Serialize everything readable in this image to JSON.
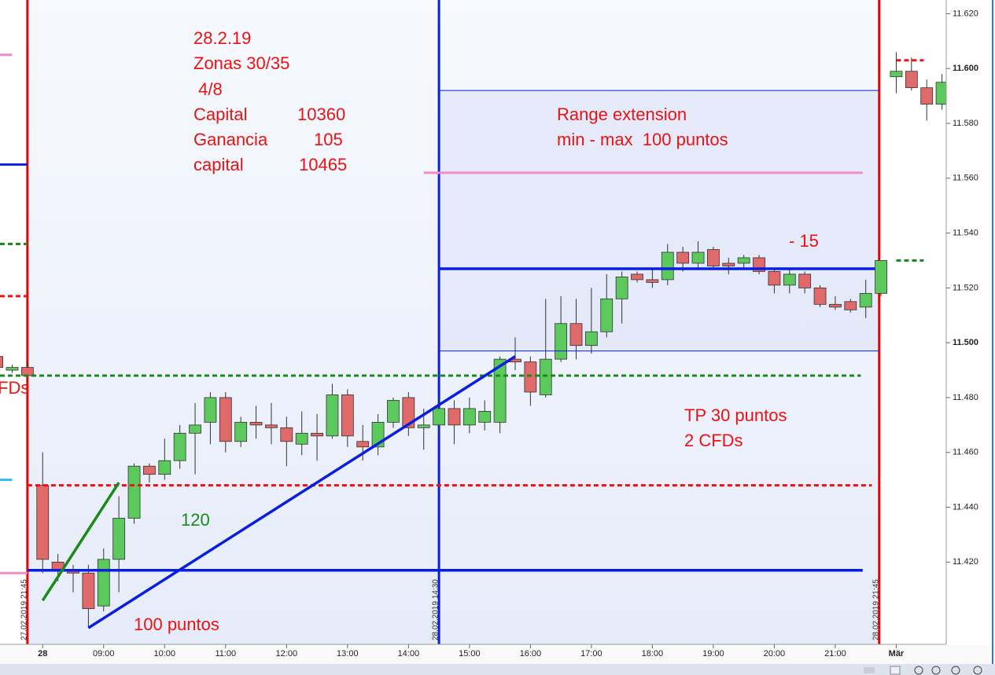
{
  "chart_data": {
    "type": "candlestick",
    "up_color": "#5cc95c",
    "down_color": "#e06a6a",
    "x": [
      7.25,
      7.5,
      7.75,
      8,
      8.25,
      8.5,
      8.75,
      9,
      9.25,
      9.5,
      9.75,
      10,
      10.25,
      10.5,
      10.75,
      11,
      11.25,
      11.5,
      11.75,
      12,
      12.25,
      12.5,
      12.75,
      13,
      13.25,
      13.5,
      13.75,
      14,
      14.25,
      14.5,
      14.75,
      15,
      15.25,
      15.5,
      15.75,
      16,
      16.25,
      16.5,
      16.75,
      17,
      17.25,
      17.5,
      17.75,
      18,
      18.25,
      18.5,
      18.75,
      19,
      19.25,
      19.5,
      19.75,
      20,
      20.25,
      20.5,
      20.75,
      21,
      21.25,
      21.5,
      21.75,
      22,
      22.25,
      22.5,
      22.75
    ],
    "open": [
      11.495,
      11.49,
      11.491,
      11.448,
      11.42,
      11.417,
      11.416,
      11.404,
      11.421,
      11.436,
      11.455,
      11.452,
      11.457,
      11.467,
      11.471,
      11.48,
      11.464,
      11.471,
      11.47,
      11.469,
      11.463,
      11.467,
      11.466,
      11.481,
      11.464,
      11.462,
      11.471,
      11.48,
      11.469,
      11.47,
      11.476,
      11.47,
      11.471,
      11.471,
      11.494,
      11.493,
      11.481,
      11.494,
      11.507,
      11.499,
      11.504,
      11.516,
      11.525,
      11.523,
      11.523,
      11.533,
      11.529,
      11.534,
      11.529,
      11.529,
      11.531,
      11.526,
      11.521,
      11.525,
      11.52,
      11.514,
      11.515,
      11.513,
      11.518,
      11.597,
      11.599,
      11.593,
      11.587
    ],
    "high": [
      11.496,
      11.492,
      11.493,
      11.46,
      11.423,
      11.419,
      11.419,
      11.425,
      11.444,
      11.456,
      11.456,
      11.465,
      11.47,
      11.478,
      11.482,
      11.482,
      11.473,
      11.477,
      11.478,
      11.473,
      11.475,
      11.474,
      11.485,
      11.483,
      11.47,
      11.474,
      11.48,
      11.482,
      11.476,
      11.48,
      11.479,
      11.48,
      11.479,
      11.495,
      11.502,
      11.495,
      11.516,
      11.517,
      11.516,
      11.52,
      11.525,
      11.526,
      11.526,
      11.527,
      11.536,
      11.535,
      11.537,
      11.535,
      11.531,
      11.532,
      11.532,
      11.527,
      11.527,
      11.526,
      11.521,
      11.517,
      11.516,
      11.523,
      11.53,
      11.606,
      11.604,
      11.596,
      11.598
    ],
    "low": [
      11.49,
      11.489,
      11.487,
      11.416,
      11.413,
      11.409,
      11.396,
      11.402,
      11.409,
      11.434,
      11.449,
      11.45,
      11.454,
      11.452,
      11.463,
      11.46,
      11.462,
      11.465,
      11.463,
      11.455,
      11.459,
      11.457,
      11.465,
      11.462,
      11.457,
      11.459,
      11.469,
      11.466,
      11.461,
      11.466,
      11.463,
      11.467,
      11.468,
      11.467,
      11.49,
      11.477,
      11.48,
      11.493,
      11.494,
      11.496,
      11.502,
      11.507,
      11.522,
      11.52,
      11.521,
      11.526,
      11.527,
      11.527,
      11.525,
      11.527,
      11.525,
      11.518,
      11.518,
      11.518,
      11.513,
      11.512,
      11.511,
      11.509,
      11.517,
      11.591,
      11.592,
      11.581,
      11.585
    ],
    "close": [
      11.491,
      11.491,
      11.488,
      11.421,
      11.417,
      11.416,
      11.403,
      11.421,
      11.436,
      11.455,
      11.452,
      11.457,
      11.467,
      11.47,
      11.48,
      11.464,
      11.471,
      11.47,
      11.469,
      11.464,
      11.467,
      11.466,
      11.481,
      11.466,
      11.462,
      11.471,
      11.479,
      11.469,
      11.47,
      11.476,
      11.47,
      11.476,
      11.475,
      11.494,
      11.493,
      11.482,
      11.494,
      11.507,
      11.499,
      11.504,
      11.516,
      11.524,
      11.523,
      11.522,
      11.533,
      11.529,
      11.533,
      11.528,
      11.528,
      11.531,
      11.526,
      11.521,
      11.525,
      11.52,
      11.514,
      11.513,
      11.512,
      11.518,
      11.53,
      11.599,
      11.593,
      11.587,
      11.595
    ],
    "xlim": [
      7.3,
      22.82
    ],
    "ylim": [
      11.39,
      11.625
    ],
    "yticks": [
      {
        "value": 11.42,
        "label": "11.420"
      },
      {
        "value": 11.44,
        "label": "11.440"
      },
      {
        "value": 11.46,
        "label": "11.460"
      },
      {
        "value": 11.48,
        "label": "11.480"
      },
      {
        "value": 11.5,
        "label": "11.500"
      },
      {
        "value": 11.52,
        "label": "11.520"
      },
      {
        "value": 11.54,
        "label": "11.540"
      },
      {
        "value": 11.56,
        "label": "11.560"
      },
      {
        "value": 11.58,
        "label": "11.580"
      },
      {
        "value": 11.6,
        "label": "11.600"
      },
      {
        "value": 11.62,
        "label": "11.620"
      }
    ],
    "xticks": [
      {
        "value": 8,
        "label": "28"
      },
      {
        "value": 9,
        "label": "09:00"
      },
      {
        "value": 10,
        "label": "10:00"
      },
      {
        "value": 11,
        "label": "11:00"
      },
      {
        "value": 12,
        "label": "12:00"
      },
      {
        "value": 13,
        "label": "13:00"
      },
      {
        "value": 14,
        "label": "14:00"
      },
      {
        "value": 15,
        "label": "15:00"
      },
      {
        "value": 16,
        "label": "16:00"
      },
      {
        "value": 17,
        "label": "17:00"
      },
      {
        "value": 18,
        "label": "18:00"
      },
      {
        "value": 19,
        "label": "19:00"
      },
      {
        "value": 20,
        "label": "20:00"
      },
      {
        "value": 21,
        "label": "21:00"
      },
      {
        "value": 22,
        "label": "Mär"
      }
    ],
    "vlines": [
      {
        "x": 7.75,
        "label": "27.02.2019 21:45",
        "color": "#ee0000"
      },
      {
        "x": 14.5,
        "label": "28.02.2019 14:30",
        "color": "#0a1ee0"
      },
      {
        "x": 21.72,
        "label": "28.02.2019 21:45",
        "color": "#ee0000"
      }
    ],
    "levels": [
      {
        "value": 11.605,
        "x": [
          7.3,
          7.5
        ],
        "color": "#f08cc8",
        "style": "solid"
      },
      {
        "value": 11.565,
        "x": [
          7.3,
          7.75
        ],
        "color": "#0a1ee0",
        "style": "solid"
      },
      {
        "value": 11.536,
        "x": [
          7.3,
          7.75
        ],
        "color": "#1a8a1a",
        "style": "dashed"
      },
      {
        "value": 11.517,
        "x": [
          7.3,
          7.75
        ],
        "color": "#ee1111",
        "style": "dashed"
      },
      {
        "value": 11.45,
        "x": [
          7.3,
          7.5
        ],
        "color": "#33bbee",
        "style": "solid"
      },
      {
        "value": 11.416,
        "x": [
          7.3,
          7.75
        ],
        "color": "#f08cc8",
        "style": "solid"
      },
      {
        "value": 11.562,
        "x": [
          14.25,
          21.45
        ],
        "color": "#f08cc8",
        "style": "solid"
      },
      {
        "value": 11.488,
        "x": [
          7.3,
          21.42
        ],
        "color": "#1a8a1a",
        "style": "dashed"
      },
      {
        "value": 11.448,
        "x": [
          7.75,
          21.6
        ],
        "color": "#ee1111",
        "style": "dashed"
      },
      {
        "value": 11.417,
        "x": [
          7.75,
          21.45
        ],
        "color": "#0a1ee0",
        "style": "thick"
      },
      {
        "value": 11.527,
        "x": [
          14.5,
          21.65
        ],
        "color": "#0a1ee0",
        "style": "thick"
      },
      {
        "value": 11.592,
        "x": [
          14.5,
          21.72
        ],
        "color": "#0a1ee0",
        "style": "thin"
      },
      {
        "value": 11.497,
        "x": [
          14.5,
          21.72
        ],
        "color": "#0a1ee0",
        "style": "thin"
      },
      {
        "value": 11.53,
        "x": [
          22,
          22.45
        ],
        "color": "#1a8a1a",
        "style": "dashed"
      },
      {
        "value": 11.603,
        "x": [
          22,
          22.45
        ],
        "color": "#ee1111",
        "style": "dashed"
      }
    ],
    "trendlines": [
      {
        "x": [
          8.75,
          15.75
        ],
        "y": [
          11.396,
          11.495
        ],
        "color": "#0a1ee0"
      },
      {
        "x": [
          8.0,
          9.25
        ],
        "y": [
          11.406,
          11.449
        ],
        "color": "#1a8a1a"
      }
    ],
    "annotations": [
      {
        "text": "28.2.19",
        "color": "#ee1111"
      },
      {
        "text": "Zonas 30/35",
        "color": "#ee1111"
      },
      {
        "text": " 4/8",
        "color": "#ee1111"
      },
      {
        "text": "Capital",
        "color": "#ee1111"
      },
      {
        "text": "10360",
        "color": "#ee1111"
      },
      {
        "text": "Ganancia",
        "color": "#ee1111"
      },
      {
        "text": "105",
        "color": "#ee1111"
      },
      {
        "text": "capital",
        "color": "#ee1111"
      },
      {
        "text": "10465",
        "color": "#ee1111"
      },
      {
        "text": "Range extension",
        "color": "#ee1111"
      },
      {
        "text": "min - max  100 puntos",
        "color": "#ee1111"
      },
      {
        "text": "- 15",
        "color": "#ee1111"
      },
      {
        "text": "120",
        "color": "#1a8a1a"
      },
      {
        "text": "100 puntos",
        "color": "#ee1111"
      },
      {
        "text": "TP 30 puntos",
        "color": "#ee1111"
      },
      {
        "text": "2 CFDs",
        "color": "#ee1111"
      },
      {
        "text": "FDs",
        "color": "#ee1111"
      }
    ]
  }
}
